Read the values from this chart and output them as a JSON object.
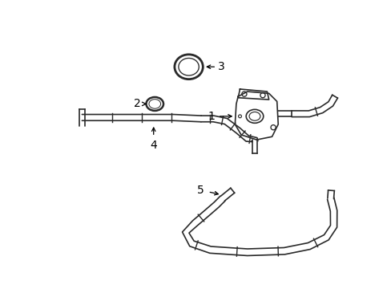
{
  "background_color": "#ffffff",
  "line_color": "#2a2a2a",
  "label_color": "#000000",
  "font_size": 10,
  "lw": 1.2,
  "lw_thick": 2.0
}
